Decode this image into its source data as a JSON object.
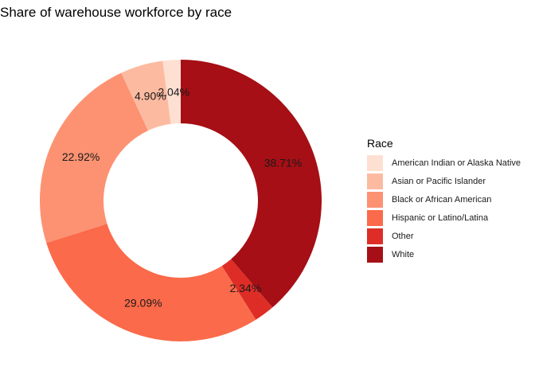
{
  "chart_data": {
    "type": "pie",
    "subtype": "donut",
    "title": "Share of warehouse workforce by race",
    "legend_title": "Race",
    "legend_position": "right",
    "slices": [
      {
        "label": "American Indian or Alaska Native",
        "value": 2.04,
        "value_label": "2.04%",
        "color": "#fee0d2"
      },
      {
        "label": "Asian or Pacific Islander",
        "value": 4.9,
        "value_label": "4.90%",
        "color": "#fcbba1"
      },
      {
        "label": "Black or African American",
        "value": 22.92,
        "value_label": "22.92%",
        "color": "#fc9272"
      },
      {
        "label": "Hispanic or Latino/Latina",
        "value": 29.09,
        "value_label": "29.09%",
        "color": "#fb6a4a"
      },
      {
        "label": "Other",
        "value": 2.34,
        "value_label": "2.34%",
        "color": "#de2d26"
      },
      {
        "label": "White",
        "value": 38.71,
        "value_label": "38.71%",
        "color": "#a50f15"
      }
    ]
  }
}
